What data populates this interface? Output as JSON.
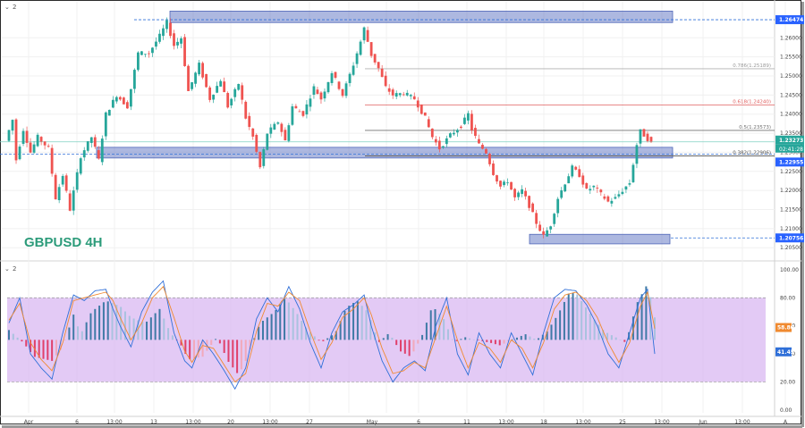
{
  "symbol_label": "GBPUSD 4H",
  "main_pane_collapse": "2",
  "osc_pane_collapse": "2",
  "price_axis": {
    "ticks": [
      "1.26000",
      "1.25500",
      "1.25000",
      "1.24500",
      "1.24000",
      "1.23500",
      "1.23000",
      "1.22500",
      "1.22000",
      "1.21500",
      "1.21000",
      "1.20500"
    ],
    "range": [
      1.202,
      1.2685
    ]
  },
  "price_badges": {
    "top": "1.26474",
    "last": "1.23273",
    "countdown": "02:41:28",
    "support": "1.22955",
    "low": "1.20756"
  },
  "fib_levels": [
    {
      "label": "0.786(1.25189)",
      "value": 1.25189,
      "color": "#b0b0b0"
    },
    {
      "label": "0.618(1.24240)",
      "value": 1.2424,
      "color": "#e06060"
    },
    {
      "label": "0.5(1.23573)",
      "value": 1.23573,
      "color": "#707070"
    },
    {
      "label": "0.382(1.22906)",
      "value": 1.22906,
      "color": "#505050"
    }
  ],
  "zones": [
    {
      "name": "resistance-zone",
      "y_top": 1.267,
      "y_bottom": 1.264
    },
    {
      "name": "support-zone",
      "y_top": 1.2313,
      "y_bottom": 1.2285
    },
    {
      "name": "low-zone",
      "y_top": 1.2085,
      "y_bottom": 1.206
    }
  ],
  "osc_axis": {
    "ticks": [
      "100.00",
      "80.00",
      "60.00",
      "40.00",
      "20.00",
      "0.00"
    ],
    "band": [
      20,
      80
    ]
  },
  "osc_badges": {
    "orange": "58.80",
    "blue": "41.45"
  },
  "time_axis": {
    "labels": [
      "Apr",
      "6",
      "13:00",
      "13",
      "13:00",
      "20",
      "13:00",
      "27",
      "May",
      "6",
      "11",
      "13:00",
      "18",
      "13:00",
      "25",
      "13:00",
      "Jun",
      "13:00",
      "A"
    ]
  },
  "colors": {
    "up": "#26a69a",
    "down": "#ef5350",
    "zone": "#5b72c2",
    "hist_up_strong": "#3f7aa6",
    "hist_up_weak": "#a9c2df",
    "hist_down_strong": "#e0406b",
    "hist_down_weak": "#f2a9bb",
    "band": "#d9b8f2",
    "line_blue": "#2f6fd8",
    "line_orange": "#f08a30"
  },
  "chart_data": [
    {
      "type": "candlestick",
      "title": "GBPUSD 4H",
      "x_range": [
        "2021-03-31",
        "2021-06-02"
      ],
      "y_range": [
        1.202,
        1.2685
      ],
      "price_path": [
        [
          0,
          1.233
        ],
        [
          2,
          1.2385
        ],
        [
          3,
          1.228
        ],
        [
          5,
          1.236
        ],
        [
          7,
          1.23
        ],
        [
          9,
          1.234
        ],
        [
          12,
          1.231
        ],
        [
          14,
          1.218
        ],
        [
          16,
          1.224
        ],
        [
          18,
          1.215
        ],
        [
          21,
          1.229
        ],
        [
          24,
          1.234
        ],
        [
          26,
          1.228
        ],
        [
          28,
          1.24
        ],
        [
          31,
          1.245
        ],
        [
          34,
          1.242
        ],
        [
          37,
          1.256
        ],
        [
          40,
          1.256
        ],
        [
          43,
          1.2605
        ],
        [
          45,
          1.264
        ],
        [
          47,
          1.258
        ],
        [
          49,
          1.26
        ],
        [
          51,
          1.246
        ],
        [
          54,
          1.253
        ],
        [
          57,
          1.244
        ],
        [
          60,
          1.249
        ],
        [
          62,
          1.242
        ],
        [
          65,
          1.248
        ],
        [
          67,
          1.239
        ],
        [
          69,
          1.234
        ],
        [
          71,
          1.226
        ],
        [
          73,
          1.235
        ],
        [
          76,
          1.238
        ],
        [
          78,
          1.233
        ],
        [
          80,
          1.242
        ],
        [
          83,
          1.24
        ],
        [
          86,
          1.247
        ],
        [
          88,
          1.244
        ],
        [
          91,
          1.251
        ],
        [
          94,
          1.245
        ],
        [
          97,
          1.253
        ],
        [
          99,
          1.259
        ],
        [
          100,
          1.2625
        ],
        [
          102,
          1.2555
        ],
        [
          104,
          1.252
        ],
        [
          106,
          1.247
        ],
        [
          108,
          1.245
        ],
        [
          111,
          1.2455
        ],
        [
          114,
          1.244
        ],
        [
          117,
          1.239
        ],
        [
          119,
          1.234
        ],
        [
          121,
          1.231
        ],
        [
          124,
          1.2345
        ],
        [
          127,
          1.237
        ],
        [
          129,
          1.24
        ],
        [
          130,
          1.236
        ],
        [
          132,
          1.232
        ],
        [
          134,
          1.23
        ],
        [
          136,
          1.2245
        ],
        [
          138,
          1.221
        ],
        [
          140,
          1.2225
        ],
        [
          142,
          1.218
        ],
        [
          144,
          1.22
        ],
        [
          146,
          1.216
        ],
        [
          148,
          1.2115
        ],
        [
          150,
          1.208
        ],
        [
          152,
          1.211
        ],
        [
          154,
          1.218
        ],
        [
          156,
          1.222
        ],
        [
          158,
          1.226
        ],
        [
          160,
          1.224
        ],
        [
          162,
          1.22
        ],
        [
          164,
          1.221
        ],
        [
          166,
          1.219
        ],
        [
          168,
          1.217
        ],
        [
          170,
          1.218
        ],
        [
          172,
          1.22
        ],
        [
          174,
          1.222
        ],
        [
          176,
          1.232
        ],
        [
          177,
          1.2355
        ],
        [
          178,
          1.2345
        ],
        [
          180,
          1.2325
        ]
      ]
    },
    {
      "type": "histogram+line",
      "y_range": [
        -2,
        105
      ],
      "band": [
        20,
        80
      ],
      "histogram": [
        [
          0,
          57
        ],
        [
          4,
          48
        ],
        [
          7,
          38
        ],
        [
          12,
          35
        ],
        [
          15,
          45
        ],
        [
          18,
          68
        ],
        [
          20,
          54
        ],
        [
          23,
          70
        ],
        [
          27,
          78
        ],
        [
          31,
          74
        ],
        [
          34,
          66
        ],
        [
          38,
          62
        ],
        [
          42,
          72
        ],
        [
          45,
          55
        ],
        [
          48,
          46
        ],
        [
          50,
          36
        ],
        [
          54,
          38
        ],
        [
          58,
          52
        ],
        [
          61,
          35
        ],
        [
          64,
          25
        ],
        [
          66,
          35
        ],
        [
          70,
          62
        ],
        [
          74,
          70
        ],
        [
          77,
          80
        ],
        [
          80,
          70
        ],
        [
          83,
          58
        ],
        [
          87,
          48
        ],
        [
          91,
          55
        ],
        [
          94,
          73
        ],
        [
          97,
          78
        ],
        [
          100,
          70
        ],
        [
          103,
          48
        ],
        [
          106,
          55
        ],
        [
          109,
          42
        ],
        [
          112,
          38
        ],
        [
          115,
          52
        ],
        [
          118,
          74
        ],
        [
          121,
          66
        ],
        [
          124,
          48
        ],
        [
          127,
          52
        ],
        [
          130,
          50
        ],
        [
          134,
          48
        ],
        [
          137,
          46
        ],
        [
          140,
          50
        ],
        [
          144,
          54
        ],
        [
          147,
          50
        ],
        [
          150,
          56
        ],
        [
          153,
          68
        ],
        [
          156,
          83
        ],
        [
          158,
          84
        ],
        [
          160,
          76
        ],
        [
          163,
          65
        ],
        [
          166,
          56
        ],
        [
          169,
          52
        ],
        [
          172,
          48
        ],
        [
          175,
          76
        ],
        [
          178,
          90
        ],
        [
          180,
          66
        ]
      ],
      "series": [
        {
          "color": "blue",
          "values": [
            [
              0,
              62
            ],
            [
              3,
              80
            ],
            [
              6,
              40
            ],
            [
              9,
              30
            ],
            [
              12,
              22
            ],
            [
              15,
              55
            ],
            [
              18,
              82
            ],
            [
              21,
              78
            ],
            [
              24,
              85
            ],
            [
              27,
              86
            ],
            [
              29,
              72
            ],
            [
              31,
              60
            ],
            [
              34,
              45
            ],
            [
              37,
              70
            ],
            [
              40,
              84
            ],
            [
              43,
              92
            ],
            [
              46,
              55
            ],
            [
              49,
              35
            ],
            [
              51,
              30
            ],
            [
              54,
              50
            ],
            [
              57,
              40
            ],
            [
              60,
              28
            ],
            [
              63,
              15
            ],
            [
              66,
              30
            ],
            [
              69,
              65
            ],
            [
              72,
              80
            ],
            [
              75,
              70
            ],
            [
              78,
              88
            ],
            [
              81,
              72
            ],
            [
              84,
              48
            ],
            [
              87,
              30
            ],
            [
              90,
              55
            ],
            [
              93,
              70
            ],
            [
              96,
              75
            ],
            [
              99,
              82
            ],
            [
              101,
              60
            ],
            [
              104,
              35
            ],
            [
              107,
              20
            ],
            [
              110,
              30
            ],
            [
              113,
              35
            ],
            [
              116,
              28
            ],
            [
              119,
              60
            ],
            [
              122,
              80
            ],
            [
              125,
              40
            ],
            [
              128,
              25
            ],
            [
              131,
              55
            ],
            [
              134,
              40
            ],
            [
              137,
              30
            ],
            [
              140,
              55
            ],
            [
              143,
              40
            ],
            [
              146,
              25
            ],
            [
              149,
              55
            ],
            [
              152,
              80
            ],
            [
              155,
              86
            ],
            [
              158,
              85
            ],
            [
              161,
              75
            ],
            [
              164,
              60
            ],
            [
              167,
              40
            ],
            [
              170,
              30
            ],
            [
              173,
              55
            ],
            [
              176,
              80
            ],
            [
              178,
              86
            ],
            [
              180,
              40
            ]
          ]
        },
        {
          "color": "orange",
          "values": [
            [
              0,
              64
            ],
            [
              3,
              76
            ],
            [
              6,
              48
            ],
            [
              9,
              36
            ],
            [
              12,
              28
            ],
            [
              15,
              48
            ],
            [
              18,
              78
            ],
            [
              21,
              80
            ],
            [
              24,
              82
            ],
            [
              27,
              84
            ],
            [
              29,
              78
            ],
            [
              31,
              66
            ],
            [
              34,
              50
            ],
            [
              37,
              62
            ],
            [
              40,
              80
            ],
            [
              43,
              88
            ],
            [
              46,
              66
            ],
            [
              49,
              42
            ],
            [
              51,
              34
            ],
            [
              54,
              46
            ],
            [
              57,
              44
            ],
            [
              60,
              32
            ],
            [
              63,
              20
            ],
            [
              66,
              26
            ],
            [
              69,
              56
            ],
            [
              72,
              76
            ],
            [
              75,
              74
            ],
            [
              78,
              84
            ],
            [
              81,
              78
            ],
            [
              84,
              56
            ],
            [
              87,
              36
            ],
            [
              90,
              48
            ],
            [
              93,
              66
            ],
            [
              96,
              72
            ],
            [
              99,
              80
            ],
            [
              101,
              68
            ],
            [
              104,
              44
            ],
            [
              107,
              26
            ],
            [
              110,
              28
            ],
            [
              113,
              34
            ],
            [
              116,
              30
            ],
            [
              119,
              52
            ],
            [
              122,
              74
            ],
            [
              125,
              50
            ],
            [
              128,
              30
            ],
            [
              131,
              48
            ],
            [
              134,
              44
            ],
            [
              137,
              34
            ],
            [
              140,
              50
            ],
            [
              143,
              44
            ],
            [
              146,
              30
            ],
            [
              149,
              48
            ],
            [
              152,
              72
            ],
            [
              155,
              82
            ],
            [
              158,
              84
            ],
            [
              161,
              78
            ],
            [
              164,
              66
            ],
            [
              167,
              48
            ],
            [
              170,
              34
            ],
            [
              173,
              48
            ],
            [
              176,
              74
            ],
            [
              178,
              84
            ],
            [
              180,
              58
            ]
          ]
        }
      ]
    }
  ]
}
